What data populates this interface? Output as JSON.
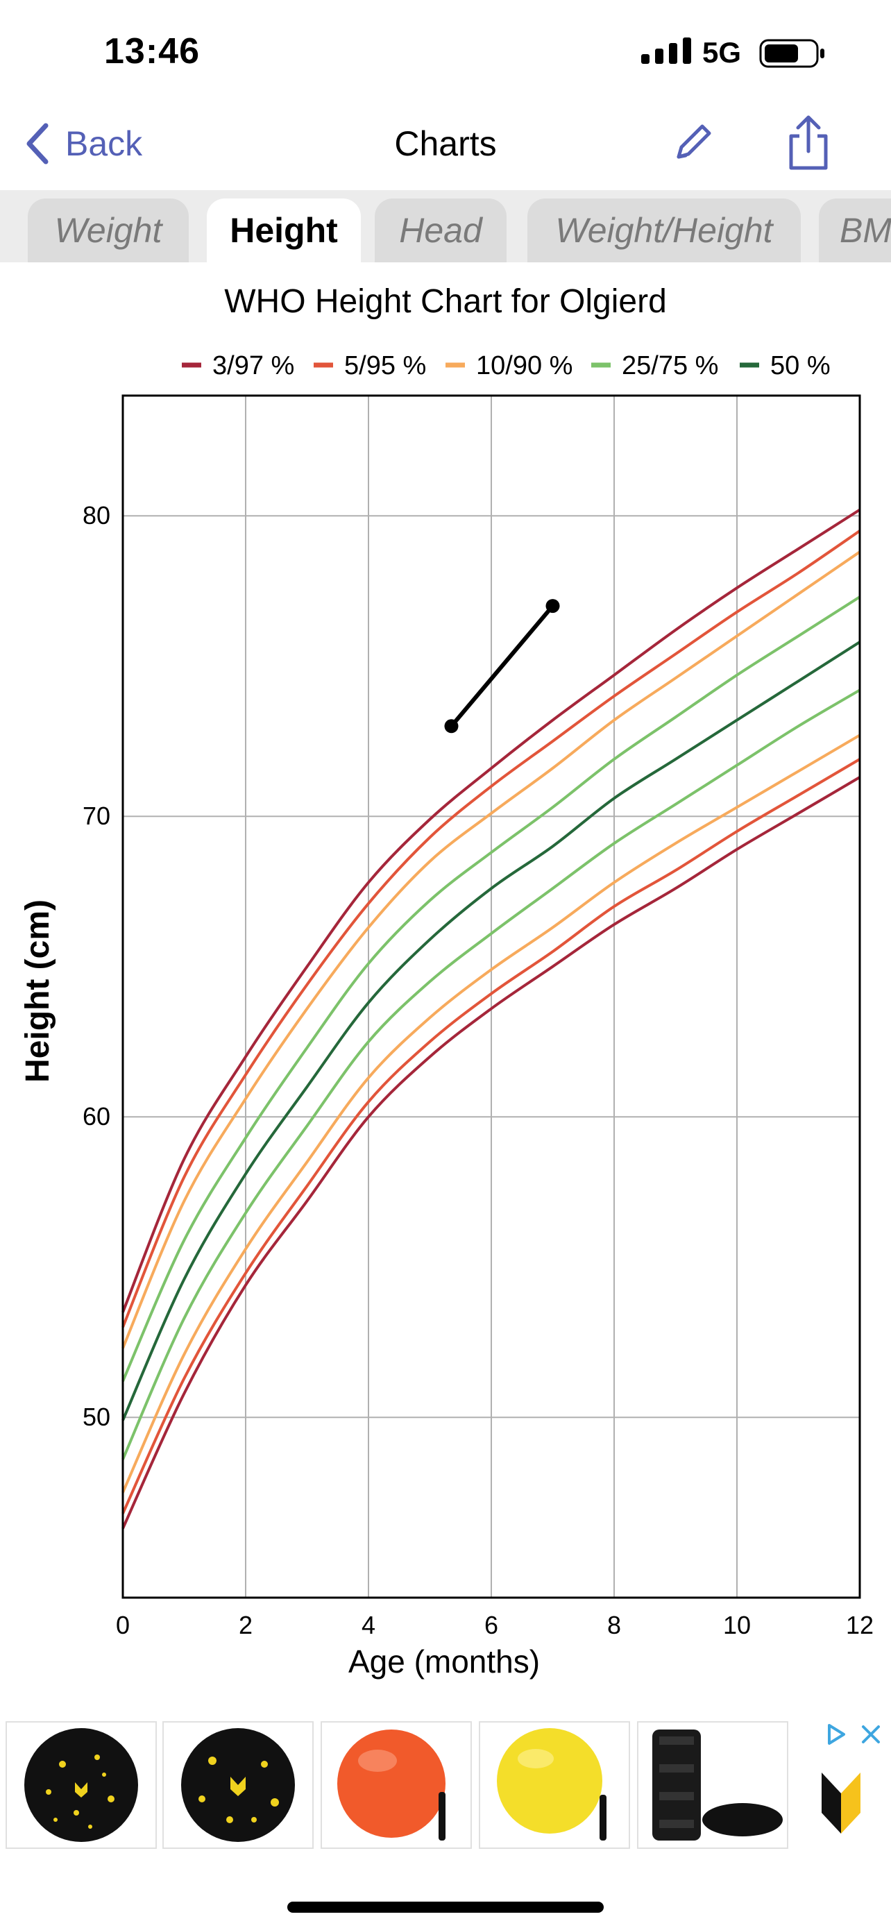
{
  "status": {
    "time": "13:46",
    "network": "5G"
  },
  "nav": {
    "back_label": "Back",
    "title": "Charts"
  },
  "tabs": [
    {
      "label": "Weight",
      "active": false
    },
    {
      "label": "Height",
      "active": true
    },
    {
      "label": "Head",
      "active": false
    },
    {
      "label": "Weight/Height",
      "active": false
    },
    {
      "label": "BMI",
      "active": false
    }
  ],
  "chart_data": {
    "type": "line",
    "title": "WHO Height Chart for Olgierd",
    "xlabel": "Age (months)",
    "ylabel": "Height (cm)",
    "xlim": [
      0,
      12
    ],
    "ylim": [
      44,
      84
    ],
    "xticks": [
      0,
      2,
      4,
      6,
      8,
      10,
      12
    ],
    "yticks": [
      50,
      60,
      70,
      80
    ],
    "grid": true,
    "legend_position": "top",
    "x": [
      0,
      1,
      2,
      3,
      4,
      5,
      6,
      7,
      8,
      9,
      10,
      11,
      12
    ],
    "legend": [
      {
        "label": "3/97 %",
        "color": "#a5263a"
      },
      {
        "label": "5/95 %",
        "color": "#e2553a"
      },
      {
        "label": "10/90 %",
        "color": "#f7aa5c"
      },
      {
        "label": "25/75 %",
        "color": "#7cc26a"
      },
      {
        "label": "50 %",
        "color": "#25683a"
      }
    ],
    "percentile_series": [
      {
        "label": "97 %",
        "color": "#a5263a",
        "values": [
          53.5,
          58.6,
          62.0,
          65.0,
          67.8,
          69.9,
          71.6,
          73.2,
          74.7,
          76.2,
          77.6,
          78.9,
          80.2
        ]
      },
      {
        "label": "95 %",
        "color": "#e2553a",
        "values": [
          53.0,
          58.0,
          61.4,
          64.4,
          67.1,
          69.3,
          71.0,
          72.5,
          74.0,
          75.4,
          76.8,
          78.1,
          79.5
        ]
      },
      {
        "label": "90 %",
        "color": "#f7aa5c",
        "values": [
          52.3,
          57.2,
          60.6,
          63.6,
          66.3,
          68.5,
          70.1,
          71.6,
          73.2,
          74.6,
          76.0,
          77.4,
          78.8
        ]
      },
      {
        "label": "75 %",
        "color": "#7cc26a",
        "values": [
          51.2,
          55.9,
          59.3,
          62.3,
          65.1,
          67.2,
          68.8,
          70.3,
          71.9,
          73.3,
          74.7,
          76.0,
          77.3
        ]
      },
      {
        "label": "50 %",
        "color": "#25683a",
        "values": [
          49.9,
          54.6,
          58.1,
          61.0,
          63.8,
          65.9,
          67.6,
          69.0,
          70.6,
          71.9,
          73.2,
          74.5,
          75.8
        ]
      },
      {
        "label": "25 %",
        "color": "#7cc26a",
        "values": [
          48.6,
          53.3,
          56.8,
          59.7,
          62.5,
          64.5,
          66.1,
          67.6,
          69.1,
          70.4,
          71.7,
          73.0,
          74.2
        ]
      },
      {
        "label": "10 %",
        "color": "#f7aa5c",
        "values": [
          47.5,
          52.1,
          55.6,
          58.5,
          61.3,
          63.3,
          64.9,
          66.3,
          67.8,
          69.1,
          70.3,
          71.5,
          72.7
        ]
      },
      {
        "label": "5 %",
        "color": "#e2553a",
        "values": [
          46.8,
          51.3,
          54.8,
          57.7,
          60.5,
          62.5,
          64.1,
          65.5,
          67.0,
          68.2,
          69.5,
          70.7,
          71.9
        ]
      },
      {
        "label": "3 %",
        "color": "#a5263a",
        "values": [
          46.3,
          50.8,
          54.4,
          57.2,
          60.0,
          62.0,
          63.6,
          65.0,
          66.4,
          67.6,
          68.9,
          70.1,
          71.3
        ]
      }
    ],
    "measurements": {
      "color": "#000000",
      "x": [
        5.35,
        7.0
      ],
      "y": [
        73.0,
        77.0
      ]
    }
  },
  "ads": {
    "items": [
      {
        "name": "black-yellow-massage-ball-1"
      },
      {
        "name": "black-yellow-massage-ball-2"
      },
      {
        "name": "red-exercise-ball"
      },
      {
        "name": "yellow-exercise-ball"
      },
      {
        "name": "foam-roller-balance-pad"
      }
    ]
  },
  "colors": {
    "accent": "#5460b6",
    "tab_strip": "#ececec",
    "tab_inactive": "#dcdcdc",
    "grid": "#b0b0b0"
  }
}
